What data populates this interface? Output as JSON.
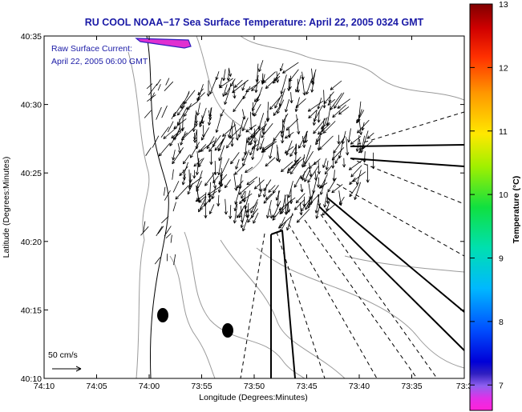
{
  "chart_data": {
    "type": "vector-field",
    "title": "RU COOL  NOAA−17  Sea Surface Temperature:  April 22, 2005 0324 GMT",
    "xlabel": "Longitude (Degrees:Minutes)",
    "ylabel": "Latitude (Degrees:Minutes)",
    "x_ticks": [
      "74:10",
      "74:05",
      "74:00",
      "73:55",
      "73:50",
      "73:45",
      "73:40",
      "73:35",
      "73:3"
    ],
    "y_ticks": [
      "40:10",
      "40:15",
      "40:20",
      "40:25",
      "40:30",
      "40:35"
    ],
    "xlim_min": [
      -70,
      -30
    ],
    "ylim_min": [
      10,
      35
    ],
    "annotation_lines": [
      "Raw Surface Current:",
      "April 22, 2005 06:00 GMT"
    ],
    "scale_label": "50 cm/s",
    "colorbar": {
      "label": "Temperature (°C)",
      "ticks": [
        7,
        8,
        9,
        10,
        11,
        12,
        13
      ],
      "range": [
        6.6,
        13
      ]
    },
    "colors": {
      "title": "#1a1aa6",
      "coast": "#000000",
      "contour": "#9a9a9a",
      "vector": "#000000"
    }
  }
}
